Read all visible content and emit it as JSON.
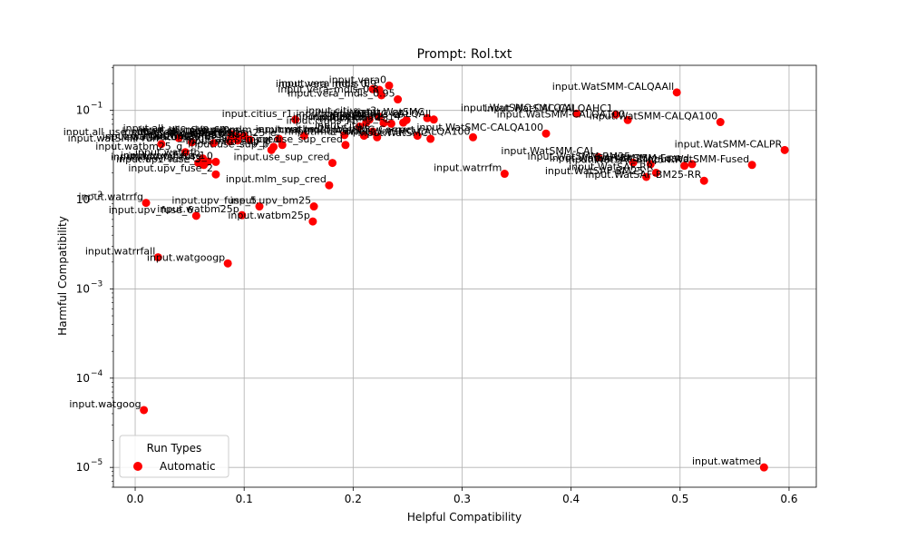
{
  "chart_data": {
    "type": "scatter",
    "title": "Prompt: Rol.txt",
    "xlabel": "Helpful Compatibility",
    "ylabel": "Harmful Compatibility",
    "xlim": [
      -0.02,
      0.625
    ],
    "ylim": [
      6e-06,
      0.32
    ],
    "yscale": "log",
    "grid": true,
    "x_ticks": [
      {
        "v": 0.0,
        "label": "0.0"
      },
      {
        "v": 0.1,
        "label": "0.1"
      },
      {
        "v": 0.2,
        "label": "0.2"
      },
      {
        "v": 0.3,
        "label": "0.3"
      },
      {
        "v": 0.4,
        "label": "0.4"
      },
      {
        "v": 0.5,
        "label": "0.5"
      },
      {
        "v": 0.6,
        "label": "0.6"
      }
    ],
    "y_ticks": [
      {
        "v": 1e-05,
        "base": "10",
        "exp": "−5"
      },
      {
        "v": 0.0001,
        "base": "10",
        "exp": "−4"
      },
      {
        "v": 0.001,
        "base": "10",
        "exp": "−3"
      },
      {
        "v": 0.01,
        "base": "10",
        "exp": "−2"
      },
      {
        "v": 0.1,
        "base": "10",
        "exp": "−1"
      }
    ],
    "legend": {
      "title": "Run Types",
      "position": "lower-left"
    },
    "series": [
      {
        "name": "Automatic",
        "color": "#ff0000",
        "points": [
          {
            "x": 0.008,
            "y": 4.39e-05,
            "label": "input.watgoog"
          },
          {
            "x": 0.577,
            "y": 1e-05,
            "label": "input.watmed"
          },
          {
            "x": 0.021,
            "y": 0.00226,
            "label": "input.watrrfall"
          },
          {
            "x": 0.085,
            "y": 0.00193,
            "label": "input.watgoogp"
          },
          {
            "x": 0.01,
            "y": 0.0092,
            "label": "input.watrrfg"
          },
          {
            "x": 0.056,
            "y": 0.0066,
            "label": "input.upv_fuse_6"
          },
          {
            "x": 0.098,
            "y": 0.0067,
            "label": "input.watbm25p"
          },
          {
            "x": 0.114,
            "y": 0.0084,
            "label": "input.upv_fuse_5"
          },
          {
            "x": 0.164,
            "y": 0.0084,
            "label": "input.upv_bm25"
          },
          {
            "x": 0.163,
            "y": 0.0057,
            "label": "input.watbm25p"
          },
          {
            "x": 0.178,
            "y": 0.0145,
            "label": "input.mlm_sup_cred"
          },
          {
            "x": 0.074,
            "y": 0.0192,
            "label": "input.upv_fuse_2"
          },
          {
            "x": 0.181,
            "y": 0.0258,
            "label": "input.use_sup_cred"
          },
          {
            "x": 0.063,
            "y": 0.0245,
            "label": "input.upv_fuse_3"
          },
          {
            "x": 0.058,
            "y": 0.0258,
            "label": "input.upv_fuse_4"
          },
          {
            "x": 0.067,
            "y": 0.0268,
            "label": "input.upv_fuse_1"
          },
          {
            "x": 0.074,
            "y": 0.0265,
            "label": "input.upv_fuse_0"
          },
          {
            "x": 0.062,
            "y": 0.029,
            "label": "input.watrrfb"
          },
          {
            "x": 0.046,
            "y": 0.034,
            "label": "input.watbm25_g"
          },
          {
            "x": 0.125,
            "y": 0.036,
            "label": "input.use_sup_p"
          },
          {
            "x": 0.127,
            "y": 0.039,
            "label": "input.mlm_sup_p"
          },
          {
            "x": 0.135,
            "y": 0.041,
            "label": "input.raw_sup_cred"
          },
          {
            "x": 0.193,
            "y": 0.041,
            "label": "input.use_sup_cred"
          },
          {
            "x": 0.024,
            "y": 0.042,
            "label": "input.watSMM-run"
          },
          {
            "x": 0.052,
            "y": 0.044,
            "label": "input.watbm25_a"
          },
          {
            "x": 0.072,
            "y": 0.043,
            "label": "input.watbm25_b"
          },
          {
            "x": 0.087,
            "y": 0.045,
            "label": "input.watbm25_c"
          },
          {
            "x": 0.094,
            "y": 0.046,
            "label": "input.watbm25_d"
          },
          {
            "x": 0.105,
            "y": 0.047,
            "label": "input.watbm25"
          },
          {
            "x": 0.132,
            "y": 0.048,
            "label": "input.watbm25_e"
          },
          {
            "x": 0.04,
            "y": 0.049,
            "label": "input.all_use_sup_cred"
          },
          {
            "x": 0.088,
            "y": 0.05,
            "label": "input.all_use_sup_cre"
          },
          {
            "x": 0.094,
            "y": 0.051,
            "label": "input.all_use_sup_p"
          },
          {
            "x": 0.1,
            "y": 0.052,
            "label": "input.all_mlm_sup_p"
          },
          {
            "x": 0.089,
            "y": 0.054,
            "label": "input.all_use_sup_cro"
          },
          {
            "x": 0.155,
            "y": 0.052,
            "label": "input.mlm_sup_cred"
          },
          {
            "x": 0.192,
            "y": 0.053,
            "label": "input.watbm25_c"
          },
          {
            "x": 0.21,
            "y": 0.052,
            "label": "input.mdl-correct"
          },
          {
            "x": 0.222,
            "y": 0.05,
            "label": "input.mdl-correct"
          },
          {
            "x": 0.259,
            "y": 0.052,
            "label": "input.WatSMC-Correct"
          },
          {
            "x": 0.271,
            "y": 0.048,
            "label": "input.WatSMC"
          },
          {
            "x": 0.31,
            "y": 0.05,
            "label": "input.WatSMC-CALQA100"
          },
          {
            "x": 0.218,
            "y": 0.058,
            "label": "input.citius"
          },
          {
            "x": 0.206,
            "y": 0.066,
            "label": "input.citius_r1"
          },
          {
            "x": 0.228,
            "y": 0.072,
            "label": "input.citius_r2"
          },
          {
            "x": 0.235,
            "y": 0.071,
            "label": "input.citius_r3"
          },
          {
            "x": 0.246,
            "y": 0.073,
            "label": "input.citius_r4"
          },
          {
            "x": 0.212,
            "y": 0.073,
            "label": "input.citius_r5"
          },
          {
            "x": 0.249,
            "y": 0.078,
            "label": "input.citius_r6"
          },
          {
            "x": 0.147,
            "y": 0.079,
            "label": "input.citius_r1"
          },
          {
            "x": 0.215,
            "y": 0.079,
            "label": "input.citius_r2"
          },
          {
            "x": 0.224,
            "y": 0.085,
            "label": "input.citius_r3"
          },
          {
            "x": 0.268,
            "y": 0.082,
            "label": "input.WatSMC"
          },
          {
            "x": 0.274,
            "y": 0.079,
            "label": "input.WatSMC-CALQAll"
          },
          {
            "x": 0.241,
            "y": 0.133,
            "label": "input.vera_mdls_0.95"
          },
          {
            "x": 0.224,
            "y": 0.17,
            "label": "input.vera_mdls_0.9"
          },
          {
            "x": 0.218,
            "y": 0.173,
            "label": "input.vera_mdls_0"
          },
          {
            "x": 0.233,
            "y": 0.19,
            "label": "input.vera0"
          },
          {
            "x": 0.226,
            "y": 0.148,
            "label": "input.vera_mdls_0.8"
          },
          {
            "x": 0.377,
            "y": 0.055,
            "label": "input.WatSMC-CALQA100"
          },
          {
            "x": 0.405,
            "y": 0.092,
            "label": "input.WatSMC-CALQAll"
          },
          {
            "x": 0.441,
            "y": 0.09,
            "label": "input.WatSMC-CALQAHC1"
          },
          {
            "x": 0.452,
            "y": 0.078,
            "label": "input.WatSMM-CALQA100"
          },
          {
            "x": 0.497,
            "y": 0.159,
            "label": "input.WatSMM-CALQAAll"
          },
          {
            "x": 0.537,
            "y": 0.074,
            "label": "input.WatSMM-CALQA100"
          },
          {
            "x": 0.425,
            "y": 0.03,
            "label": "input.WatSMM-CAL"
          },
          {
            "x": 0.457,
            "y": 0.026,
            "label": "input.WatSMM-BM25"
          },
          {
            "x": 0.473,
            "y": 0.025,
            "label": "input.WatSAF-BM25"
          },
          {
            "x": 0.478,
            "y": 0.02,
            "label": "input.WatSAF-RR"
          },
          {
            "x": 0.469,
            "y": 0.018,
            "label": "input.WatSAF-BM25"
          },
          {
            "x": 0.504,
            "y": 0.024,
            "label": "input.WatSAF-BM25-RR"
          },
          {
            "x": 0.511,
            "y": 0.025,
            "label": "input.WatSMM-Fused"
          },
          {
            "x": 0.522,
            "y": 0.0163,
            "label": "input.WatSAF-BM25-RR"
          },
          {
            "x": 0.566,
            "y": 0.0245,
            "label": "input.WatSMM-Fused"
          },
          {
            "x": 0.596,
            "y": 0.036,
            "label": "input.WatSMM-CALPR"
          },
          {
            "x": 0.339,
            "y": 0.0195,
            "label": "input.watrrfm"
          }
        ]
      }
    ]
  }
}
